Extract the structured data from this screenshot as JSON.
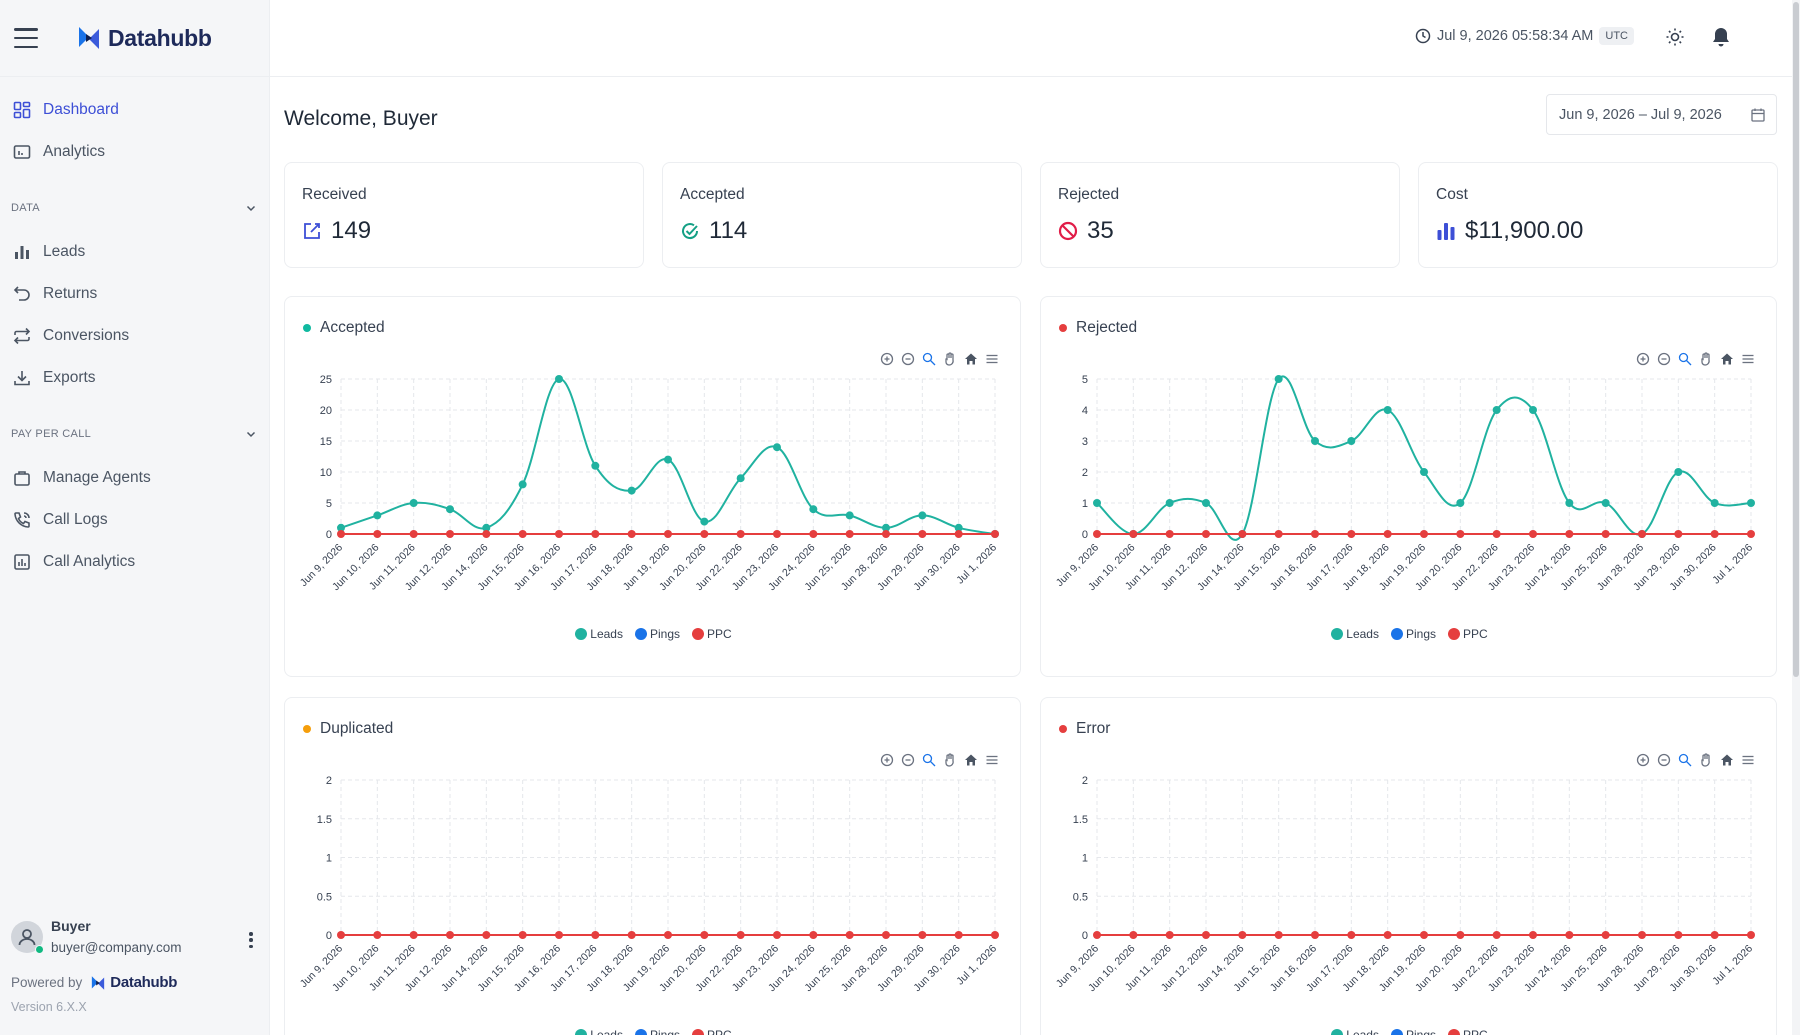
{
  "app": {
    "name": "Datahubb"
  },
  "sidebar": {
    "top_items": [
      {
        "label": "Dashboard",
        "icon": "dashboard-icon",
        "active": true
      },
      {
        "label": "Analytics",
        "icon": "analytics-icon"
      }
    ],
    "sections": [
      {
        "title": "DATA",
        "items": [
          {
            "label": "Leads",
            "icon": "bar-chart-icon"
          },
          {
            "label": "Returns",
            "icon": "return-icon"
          },
          {
            "label": "Conversions",
            "icon": "repeat-icon"
          },
          {
            "label": "Exports",
            "icon": "download-icon"
          }
        ]
      },
      {
        "title": "PAY PER CALL",
        "items": [
          {
            "label": "Manage Agents",
            "icon": "briefcase-icon"
          },
          {
            "label": "Call Logs",
            "icon": "phone-call-icon"
          },
          {
            "label": "Call Analytics",
            "icon": "call-analytics-icon"
          }
        ]
      }
    ],
    "user": {
      "name": "Buyer",
      "email": "buyer@company.com",
      "status": "online"
    },
    "powered_by": "Powered by",
    "version": "Version 6.X.X"
  },
  "header": {
    "datetime": "Jul 9, 2026 05:58:34 AM",
    "timezone": "UTC"
  },
  "main": {
    "welcome": "Welcome, Buyer",
    "date_range": "Jun 9, 2026 – Jul 9, 2026",
    "stats": [
      {
        "label": "Received",
        "value": "149",
        "icon": "edit-icon",
        "color": "#3d4fd6"
      },
      {
        "label": "Accepted",
        "value": "114",
        "icon": "check-circle-icon",
        "color": "#14a085"
      },
      {
        "label": "Rejected",
        "value": "35",
        "icon": "ban-icon",
        "color": "#e11d48"
      },
      {
        "label": "Cost",
        "value": "$11,900.00",
        "icon": "bar-chart-icon",
        "color": "#3d4fd6"
      }
    ],
    "legend": [
      {
        "label": "Leads",
        "color": "#20b2a0"
      },
      {
        "label": "Pings",
        "color": "#1a73e8"
      },
      {
        "label": "PPC",
        "color": "#e53e3e"
      }
    ]
  },
  "chart_data": [
    {
      "type": "line",
      "title": "Accepted",
      "title_dot_color": "#10b9a0",
      "categories": [
        "Jun 9, 2026",
        "Jun 10, 2026",
        "Jun 11, 2026",
        "Jun 12, 2026",
        "Jun 14, 2026",
        "Jun 15, 2026",
        "Jun 16, 2026",
        "Jun 17, 2026",
        "Jun 18, 2026",
        "Jun 19, 2026",
        "Jun 20, 2026",
        "Jun 22, 2026",
        "Jun 23, 2026",
        "Jun 24, 2026",
        "Jun 25, 2026",
        "Jun 28, 2026",
        "Jun 29, 2026",
        "Jun 30, 2026",
        "Jul 1, 2026"
      ],
      "yticks": [
        "0",
        "5",
        "10",
        "15",
        "20",
        "25"
      ],
      "ylim": [
        0,
        25
      ],
      "series": [
        {
          "name": "Leads",
          "color": "#20b2a0",
          "values": [
            1,
            3,
            5,
            4,
            1,
            8,
            25,
            11,
            7,
            12,
            2,
            9,
            14,
            4,
            3,
            1,
            3,
            1,
            0
          ]
        },
        {
          "name": "PPC",
          "color": "#e53e3e",
          "values": [
            0,
            0,
            0,
            0,
            0,
            0,
            0,
            0,
            0,
            0,
            0,
            0,
            0,
            0,
            0,
            0,
            0,
            0,
            0
          ]
        }
      ]
    },
    {
      "type": "line",
      "title": "Rejected",
      "title_dot_color": "#e53e3e",
      "categories": [
        "Jun 9, 2026",
        "Jun 10, 2026",
        "Jun 11, 2026",
        "Jun 12, 2026",
        "Jun 14, 2026",
        "Jun 15, 2026",
        "Jun 16, 2026",
        "Jun 17, 2026",
        "Jun 18, 2026",
        "Jun 19, 2026",
        "Jun 20, 2026",
        "Jun 22, 2026",
        "Jun 23, 2026",
        "Jun 24, 2026",
        "Jun 25, 2026",
        "Jun 28, 2026",
        "Jun 29, 2026",
        "Jun 30, 2026",
        "Jul 1, 2026"
      ],
      "yticks": [
        "0",
        "1",
        "2",
        "3",
        "4",
        "5"
      ],
      "ylim": [
        0,
        5
      ],
      "series": [
        {
          "name": "Leads",
          "color": "#20b2a0",
          "values": [
            1,
            0,
            1,
            1,
            0,
            5,
            3,
            3,
            4,
            2,
            1,
            4,
            4,
            1,
            1,
            0,
            2,
            1,
            1
          ]
        },
        {
          "name": "PPC",
          "color": "#e53e3e",
          "values": [
            0,
            0,
            0,
            0,
            0,
            0,
            0,
            0,
            0,
            0,
            0,
            0,
            0,
            0,
            0,
            0,
            0,
            0,
            0
          ]
        }
      ]
    },
    {
      "type": "line",
      "title": "Duplicated",
      "title_dot_color": "#f59e0b",
      "categories": [
        "Jun 9, 2026",
        "Jun 10, 2026",
        "Jun 11, 2026",
        "Jun 12, 2026",
        "Jun 14, 2026",
        "Jun 15, 2026",
        "Jun 16, 2026",
        "Jun 17, 2026",
        "Jun 18, 2026",
        "Jun 19, 2026",
        "Jun 20, 2026",
        "Jun 22, 2026",
        "Jun 23, 2026",
        "Jun 24, 2026",
        "Jun 25, 2026",
        "Jun 28, 2026",
        "Jun 29, 2026",
        "Jun 30, 2026",
        "Jul 1, 2026"
      ],
      "yticks": [
        "0",
        "0.5",
        "1",
        "1.5",
        "2"
      ],
      "ylim": [
        0,
        2
      ],
      "series": [
        {
          "name": "PPC",
          "color": "#e53e3e",
          "values": [
            0,
            0,
            0,
            0,
            0,
            0,
            0,
            0,
            0,
            0,
            0,
            0,
            0,
            0,
            0,
            0,
            0,
            0,
            0
          ]
        }
      ]
    },
    {
      "type": "line",
      "title": "Error",
      "title_dot_color": "#e53e3e",
      "categories": [
        "Jun 9, 2026",
        "Jun 10, 2026",
        "Jun 11, 2026",
        "Jun 12, 2026",
        "Jun 14, 2026",
        "Jun 15, 2026",
        "Jun 16, 2026",
        "Jun 17, 2026",
        "Jun 18, 2026",
        "Jun 19, 2026",
        "Jun 20, 2026",
        "Jun 22, 2026",
        "Jun 23, 2026",
        "Jun 24, 2026",
        "Jun 25, 2026",
        "Jun 28, 2026",
        "Jun 29, 2026",
        "Jun 30, 2026",
        "Jul 1, 2026"
      ],
      "yticks": [
        "0",
        "0.5",
        "1",
        "1.5",
        "2"
      ],
      "ylim": [
        0,
        2
      ],
      "series": [
        {
          "name": "PPC",
          "color": "#e53e3e",
          "values": [
            0,
            0,
            0,
            0,
            0,
            0,
            0,
            0,
            0,
            0,
            0,
            0,
            0,
            0,
            0,
            0,
            0,
            0,
            0
          ]
        }
      ]
    }
  ]
}
